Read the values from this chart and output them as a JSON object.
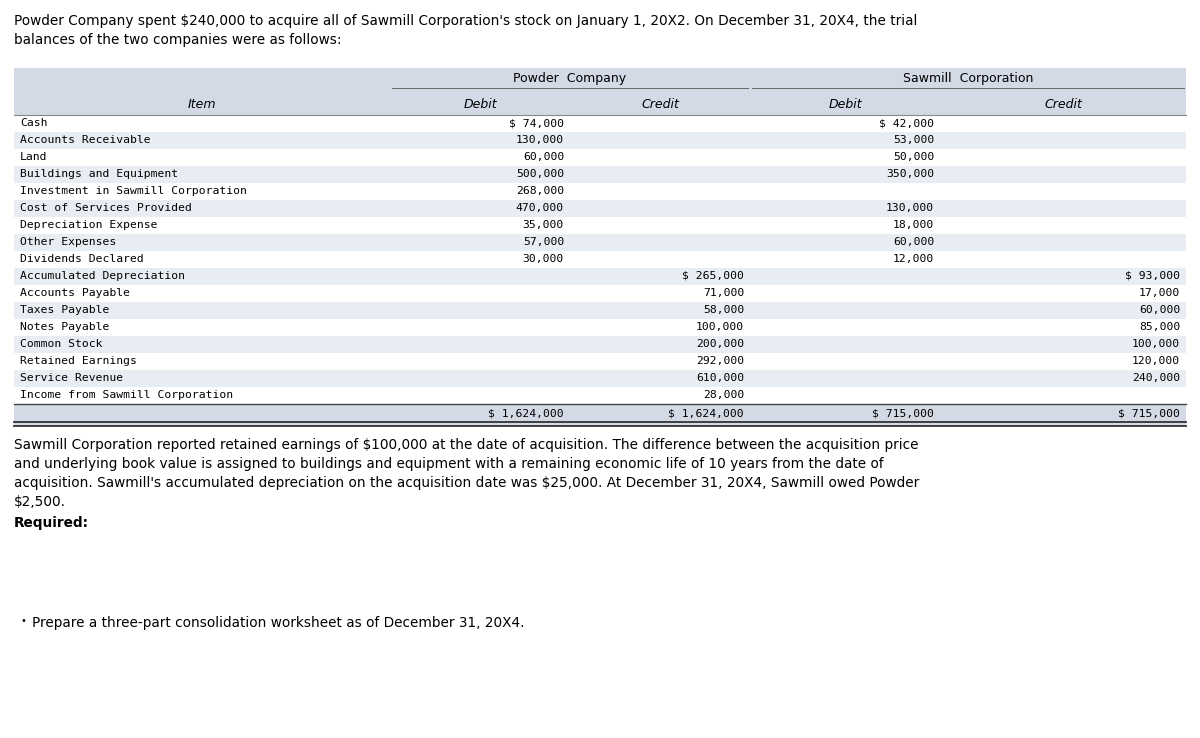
{
  "intro_text": "Powder Company spent $240,000 to acquire all of Sawmill Corporation's stock on January 1, 20X2. On December 31, 20X4, the trial\nbalances of the two companies were as follows:",
  "items": [
    "Cash",
    "Accounts Receivable",
    "Land",
    "Buildings and Equipment",
    "Investment in Sawmill Corporation",
    "Cost of Services Provided",
    "Depreciation Expense",
    "Other Expenses",
    "Dividends Declared",
    "Accumulated Depreciation",
    "Accounts Payable",
    "Taxes Payable",
    "Notes Payable",
    "Common Stock",
    "Retained Earnings",
    "Service Revenue",
    "Income from Sawmill Corporation"
  ],
  "powder_debit": [
    "$ 74,000",
    "130,000",
    "60,000",
    "500,000",
    "268,000",
    "470,000",
    "35,000",
    "57,000",
    "30,000",
    "",
    "",
    "",
    "",
    "",
    "",
    "",
    ""
  ],
  "powder_credit": [
    "",
    "",
    "",
    "",
    "",
    "",
    "",
    "",
    "",
    "$ 265,000",
    "71,000",
    "58,000",
    "100,000",
    "200,000",
    "292,000",
    "610,000",
    "28,000"
  ],
  "sawmill_debit": [
    "$ 42,000",
    "53,000",
    "50,000",
    "350,000",
    "",
    "130,000",
    "18,000",
    "60,000",
    "12,000",
    "",
    "",
    "",
    "",
    "",
    "",
    "",
    ""
  ],
  "sawmill_credit": [
    "",
    "",
    "",
    "",
    "",
    "",
    "",
    "",
    "",
    "$ 93,000",
    "17,000",
    "60,000",
    "85,000",
    "100,000",
    "120,000",
    "240,000",
    ""
  ],
  "total_powder_debit": "$ 1,624,000",
  "total_powder_credit": "$ 1,624,000",
  "total_sawmill_debit": "$ 715,000",
  "total_sawmill_credit": "$ 715,000",
  "footer_text": "Sawmill Corporation reported retained earnings of $100,000 at the date of acquisition. The difference between the acquisition price\nand underlying book value is assigned to buildings and equipment with a remaining economic life of 10 years from the date of\nacquisition. Sawmill's accumulated depreciation on the acquisition date was $25,000. At December 31, 20X4, Sawmill owed Powder\n$2,500.",
  "required_label": "Required:",
  "bullet_text": "Prepare a three-part consolidation worksheet as of December 31, 20X4.",
  "bg_header": "#d3dae6",
  "bg_alt": "#e8edf3",
  "bg_white": "#ffffff",
  "fg": "#000000"
}
